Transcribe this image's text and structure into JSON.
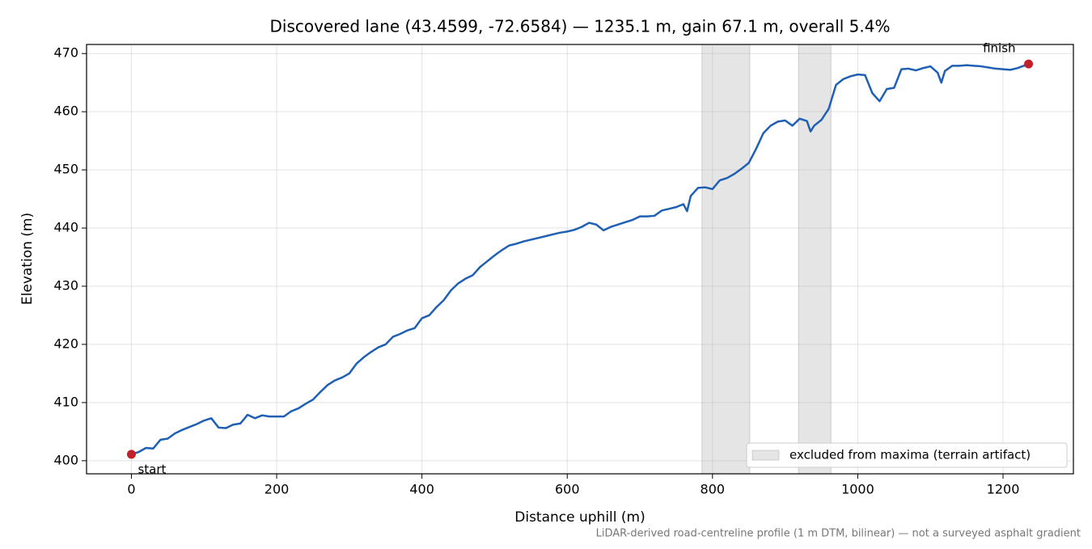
{
  "chart_data": {
    "type": "line",
    "title": "Discovered lane (43.4599, -72.6584) — 1235.1 m, gain 67.1 m, overall 5.4%",
    "x_label": "Distance uphill (m)",
    "y_label": "Elevation (m)",
    "footnote": "LiDAR-derived road-centreline profile (1 m DTM, bilinear) — not a surveyed asphalt gradient",
    "x": [
      0,
      10,
      20,
      30,
      40,
      50,
      60,
      70,
      80,
      90,
      100,
      110,
      120,
      130,
      140,
      150,
      160,
      170,
      180,
      190,
      200,
      210,
      220,
      230,
      240,
      250,
      260,
      270,
      280,
      290,
      300,
      310,
      320,
      330,
      340,
      350,
      360,
      370,
      380,
      390,
      400,
      410,
      420,
      430,
      440,
      450,
      460,
      470,
      480,
      490,
      500,
      510,
      520,
      530,
      540,
      550,
      560,
      570,
      580,
      590,
      600,
      610,
      620,
      630,
      640,
      650,
      660,
      670,
      680,
      690,
      700,
      710,
      720,
      730,
      740,
      750,
      760,
      765,
      770,
      780,
      790,
      800,
      810,
      820,
      830,
      840,
      850,
      860,
      870,
      880,
      890,
      900,
      910,
      920,
      930,
      935,
      940,
      950,
      960,
      970,
      980,
      990,
      1000,
      1010,
      1020,
      1030,
      1040,
      1050,
      1060,
      1070,
      1080,
      1090,
      1100,
      1110,
      1115,
      1120,
      1130,
      1140,
      1150,
      1160,
      1170,
      1180,
      1190,
      1200,
      1210,
      1220,
      1235.1
    ],
    "series": [
      {
        "name": "elevation",
        "color": "#1f5fb4",
        "values": [
          401.1,
          401.5,
          402.2,
          402.1,
          403.6,
          403.8,
          404.7,
          405.3,
          405.8,
          406.3,
          406.9,
          407.3,
          405.7,
          405.6,
          406.2,
          406.4,
          407.9,
          407.3,
          407.8,
          407.6,
          407.6,
          407.6,
          408.5,
          409.0,
          409.8,
          410.5,
          411.8,
          413.0,
          413.8,
          414.3,
          415.0,
          416.7,
          417.8,
          418.7,
          419.5,
          420.0,
          421.3,
          421.8,
          422.4,
          422.8,
          424.5,
          425.0,
          426.4,
          427.6,
          429.3,
          430.5,
          431.3,
          431.9,
          433.3,
          434.3,
          435.3,
          436.2,
          437.0,
          437.3,
          437.7,
          438.0,
          438.3,
          438.6,
          438.9,
          439.2,
          439.4,
          439.7,
          440.2,
          440.9,
          440.6,
          439.6,
          440.2,
          440.6,
          441.0,
          441.4,
          442.0,
          442.0,
          442.1,
          443.0,
          443.3,
          443.6,
          444.1,
          442.9,
          445.5,
          446.9,
          447.0,
          446.7,
          448.2,
          448.6,
          449.3,
          450.2,
          451.2,
          453.6,
          456.3,
          457.6,
          458.3,
          458.5,
          457.6,
          458.8,
          458.4,
          456.6,
          457.6,
          458.6,
          460.5,
          464.6,
          465.6,
          466.1,
          466.4,
          466.3,
          463.2,
          461.8,
          463.9,
          464.1,
          467.3,
          467.4,
          467.1,
          467.5,
          467.8,
          466.7,
          465.0,
          467.0,
          467.9,
          467.9,
          468.0,
          467.9,
          467.8,
          467.6,
          467.4,
          467.3,
          467.2,
          467.5,
          468.2
        ]
      }
    ],
    "excluded": {
      "label": "excluded from maxima (terrain artifact)",
      "color": "#cccccc",
      "ranges": [
        [
          785.5,
          851.4
        ],
        [
          918.4,
          963.1
        ]
      ]
    },
    "endpoints": {
      "color": "#c0202a",
      "start_label": "start",
      "finish_label": "finish"
    },
    "xlim": [
      -61.76,
      1296.86
    ],
    "ylim": [
      397.75,
      471.56
    ],
    "xticks": [
      0,
      200,
      400,
      600,
      800,
      1000,
      1200
    ],
    "yticks": [
      400,
      410,
      420,
      430,
      440,
      450,
      460,
      470
    ],
    "grid": true,
    "legend_position": "lower right"
  }
}
